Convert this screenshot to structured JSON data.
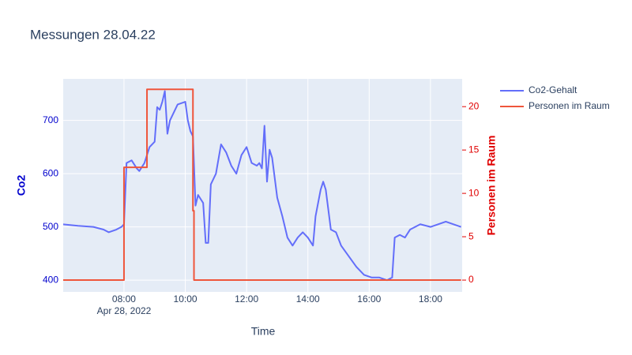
{
  "chart_data": {
    "type": "line",
    "title": "Messungen 28.04.22",
    "x_label": "Time",
    "y_label": "Co2",
    "y2_label": "Personen im Raum",
    "x_date_label": "Apr 28, 2022",
    "xlim": [
      "2022-04-28 06:01",
      "2022-04-28 19:02"
    ],
    "xticks": [
      {
        "value": "2022-04-28 08:00",
        "label": "08:00"
      },
      {
        "value": "2022-04-28 10:00",
        "label": "10:00"
      },
      {
        "value": "2022-04-28 12:00",
        "label": "12:00"
      },
      {
        "value": "2022-04-28 14:00",
        "label": "14:00"
      },
      {
        "value": "2022-04-28 16:00",
        "label": "16:00"
      },
      {
        "value": "2022-04-28 18:00",
        "label": "18:00"
      }
    ],
    "ylim": [
      378,
      778
    ],
    "yticks": [
      400,
      500,
      600,
      700
    ],
    "y2lim": [
      -1.36,
      23.2
    ],
    "y2ticks": [
      0,
      5,
      10,
      15,
      20
    ],
    "grid": true,
    "legend": "right",
    "series": [
      {
        "name": "Co2-Gehalt",
        "color": "#636efa",
        "axis": "y",
        "x": [
          "2022-04-28 06:00",
          "2022-04-28 06:30",
          "2022-04-28 07:00",
          "2022-04-28 07:20",
          "2022-04-28 07:30",
          "2022-04-28 07:45",
          "2022-04-28 07:55",
          "2022-04-28 08:00",
          "2022-04-28 08:05",
          "2022-04-28 08:15",
          "2022-04-28 08:25",
          "2022-04-28 08:30",
          "2022-04-28 08:40",
          "2022-04-28 08:50",
          "2022-04-28 09:00",
          "2022-04-28 09:05",
          "2022-04-28 09:10",
          "2022-04-28 09:15",
          "2022-04-28 09:20",
          "2022-04-28 09:25",
          "2022-04-28 09:30",
          "2022-04-28 09:45",
          "2022-04-28 10:00",
          "2022-04-28 10:05",
          "2022-04-28 10:10",
          "2022-04-28 10:15",
          "2022-04-28 10:20",
          "2022-04-28 10:25",
          "2022-04-28 10:35",
          "2022-04-28 10:40",
          "2022-04-28 10:45",
          "2022-04-28 10:50",
          "2022-04-28 11:00",
          "2022-04-28 11:10",
          "2022-04-28 11:20",
          "2022-04-28 11:30",
          "2022-04-28 11:40",
          "2022-04-28 11:50",
          "2022-04-28 12:00",
          "2022-04-28 12:10",
          "2022-04-28 12:20",
          "2022-04-28 12:25",
          "2022-04-28 12:30",
          "2022-04-28 12:35",
          "2022-04-28 12:40",
          "2022-04-28 12:45",
          "2022-04-28 12:50",
          "2022-04-28 13:00",
          "2022-04-28 13:10",
          "2022-04-28 13:20",
          "2022-04-28 13:30",
          "2022-04-28 13:40",
          "2022-04-28 13:50",
          "2022-04-28 14:00",
          "2022-04-28 14:10",
          "2022-04-28 14:15",
          "2022-04-28 14:25",
          "2022-04-28 14:30",
          "2022-04-28 14:35",
          "2022-04-28 14:45",
          "2022-04-28 14:55",
          "2022-04-28 15:05",
          "2022-04-28 15:20",
          "2022-04-28 15:35",
          "2022-04-28 15:50",
          "2022-04-28 16:05",
          "2022-04-28 16:20",
          "2022-04-28 16:35",
          "2022-04-28 16:45",
          "2022-04-28 16:50",
          "2022-04-28 17:00",
          "2022-04-28 17:10",
          "2022-04-28 17:20",
          "2022-04-28 17:40",
          "2022-04-28 18:00",
          "2022-04-28 18:15",
          "2022-04-28 18:30",
          "2022-04-28 18:45",
          "2022-04-28 19:00"
        ],
        "values": [
          505,
          502,
          500,
          495,
          490,
          495,
          500,
          505,
          620,
          625,
          610,
          605,
          620,
          650,
          660,
          725,
          720,
          735,
          755,
          675,
          700,
          730,
          735,
          700,
          680,
          670,
          540,
          560,
          545,
          470,
          470,
          580,
          600,
          655,
          640,
          615,
          600,
          635,
          650,
          620,
          615,
          620,
          610,
          690,
          585,
          645,
          630,
          555,
          520,
          480,
          465,
          480,
          490,
          480,
          465,
          520,
          570,
          585,
          570,
          495,
          490,
          465,
          445,
          425,
          410,
          405,
          405,
          400,
          405,
          480,
          485,
          480,
          495,
          505,
          500,
          505,
          510,
          505,
          500
        ]
      },
      {
        "name": "Personen im Raum",
        "color": "#EF553B",
        "axis": "y2",
        "line_shape": "hv",
        "x": [
          "2022-04-28 06:00",
          "2022-04-28 08:00",
          "2022-04-28 08:45",
          "2022-04-28 10:15",
          "2022-04-28 10:17",
          "2022-04-28 19:00"
        ],
        "values": [
          0,
          13,
          22,
          8,
          0,
          0
        ]
      }
    ]
  }
}
